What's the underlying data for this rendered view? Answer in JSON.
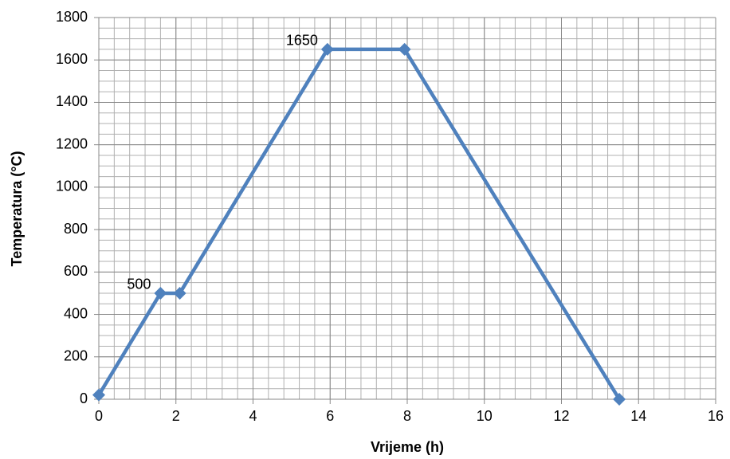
{
  "chart_data": {
    "type": "line",
    "x_label": "Vrijeme (h)",
    "y_label": "Temperatura (°C)",
    "x": [
      0,
      1.6,
      2.1,
      5.93,
      7.93,
      13.5
    ],
    "series": [
      {
        "name": "Temperatura",
        "color": "#4f81bd",
        "values": [
          20,
          500,
          500,
          1650,
          1650,
          0
        ],
        "value_labels": [
          null,
          "500",
          null,
          "1650",
          null,
          null
        ]
      }
    ],
    "xlim": [
      0,
      16
    ],
    "xticks": [
      0,
      2,
      4,
      6,
      8,
      10,
      12,
      14,
      16
    ],
    "ylim": [
      0,
      1800
    ],
    "yticks": [
      0,
      200,
      400,
      600,
      800,
      1000,
      1200,
      1400,
      1600,
      1800
    ],
    "grid": true,
    "x_minor_grid_step": 0.4,
    "y_minor_grid_step": 50
  }
}
